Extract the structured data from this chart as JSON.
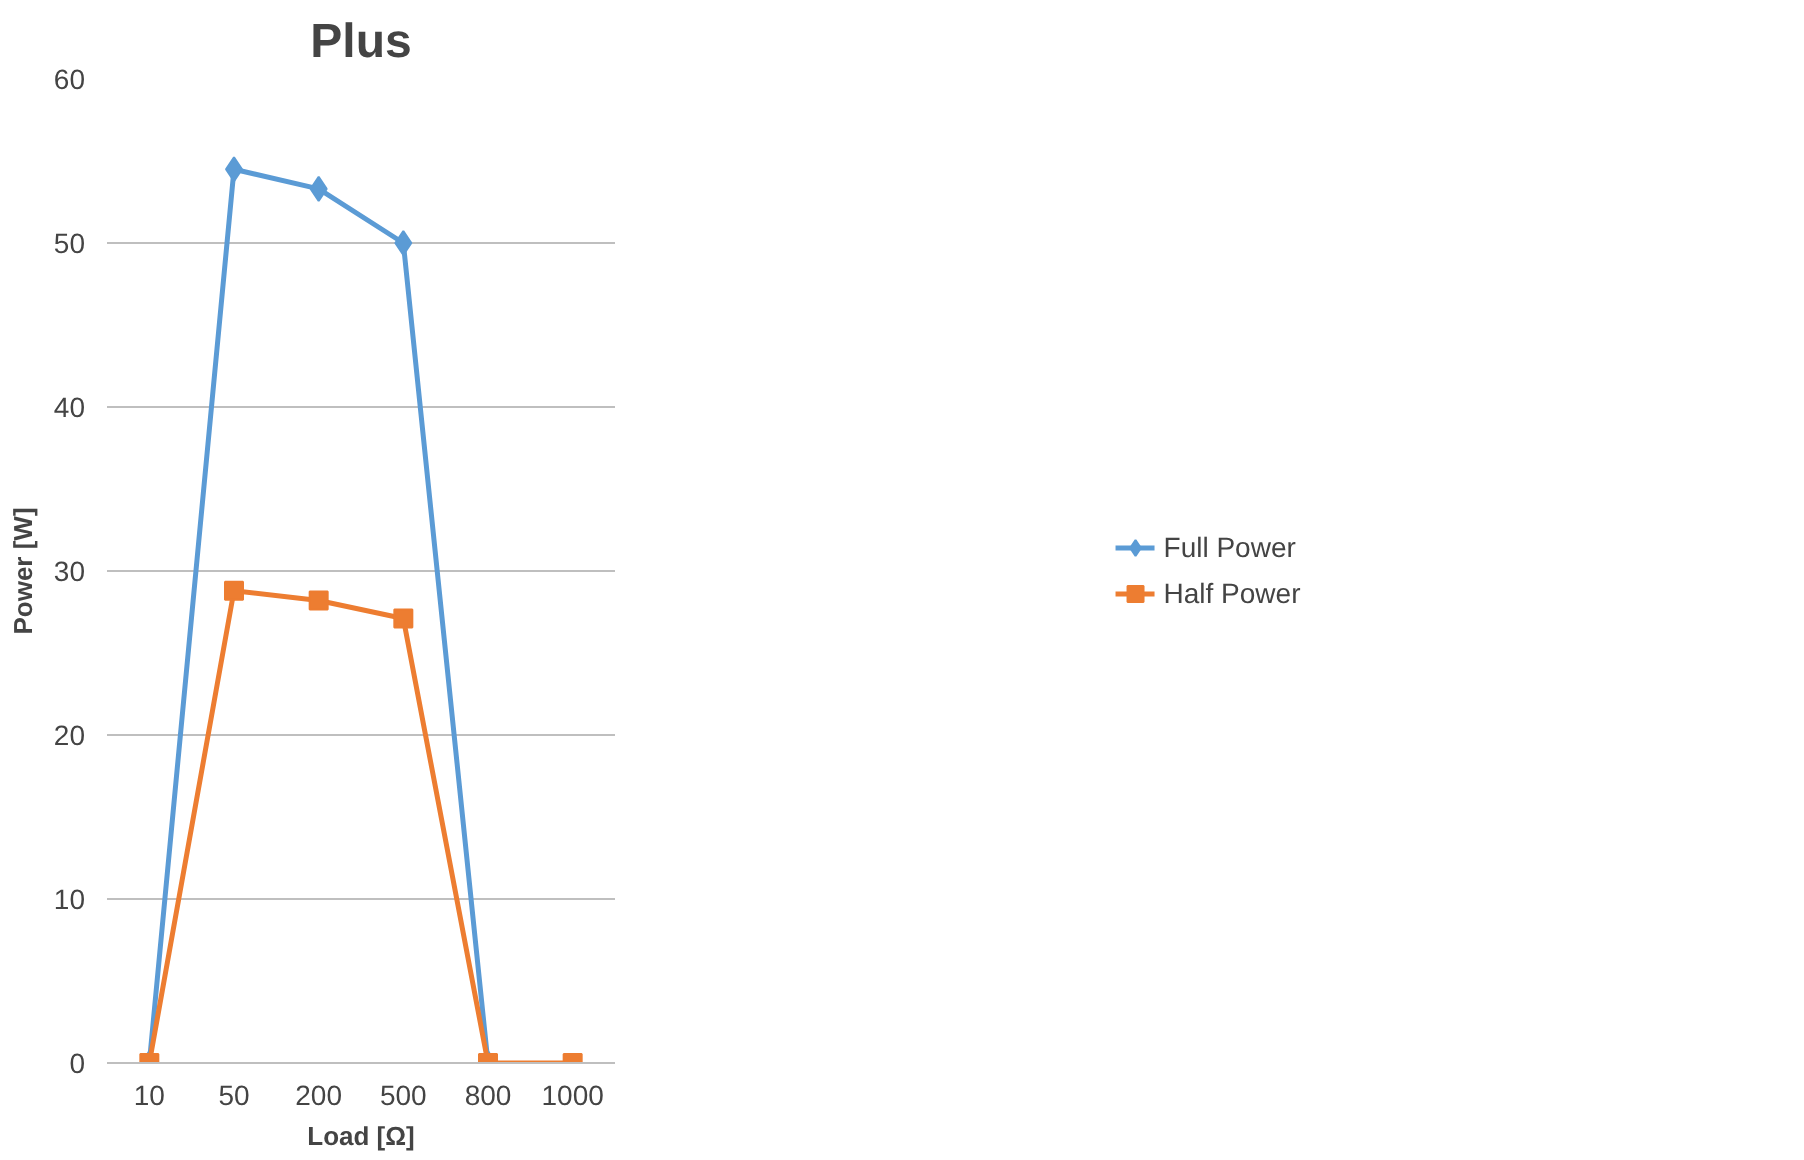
{
  "chart_data": {
    "type": "line",
    "title": "Plus",
    "xlabel": "Load [Ω]",
    "ylabel": "Power [W]",
    "categories": [
      "10",
      "50",
      "200",
      "500",
      "800",
      "1000"
    ],
    "series": [
      {
        "name": "Full Power",
        "color": "#5b9bd5",
        "marker": "diamond",
        "values": [
          0,
          54.5,
          53.3,
          50,
          0,
          null
        ]
      },
      {
        "name": "Half Power",
        "color": "#ed7d31",
        "marker": "square",
        "values": [
          0,
          28.8,
          28.2,
          27.1,
          0,
          0
        ]
      }
    ],
    "ylim": [
      0,
      60
    ],
    "yticks": [
      0,
      10,
      20,
      30,
      40,
      50,
      60
    ],
    "grid": "y",
    "legend": "right",
    "line_style": "solid"
  }
}
